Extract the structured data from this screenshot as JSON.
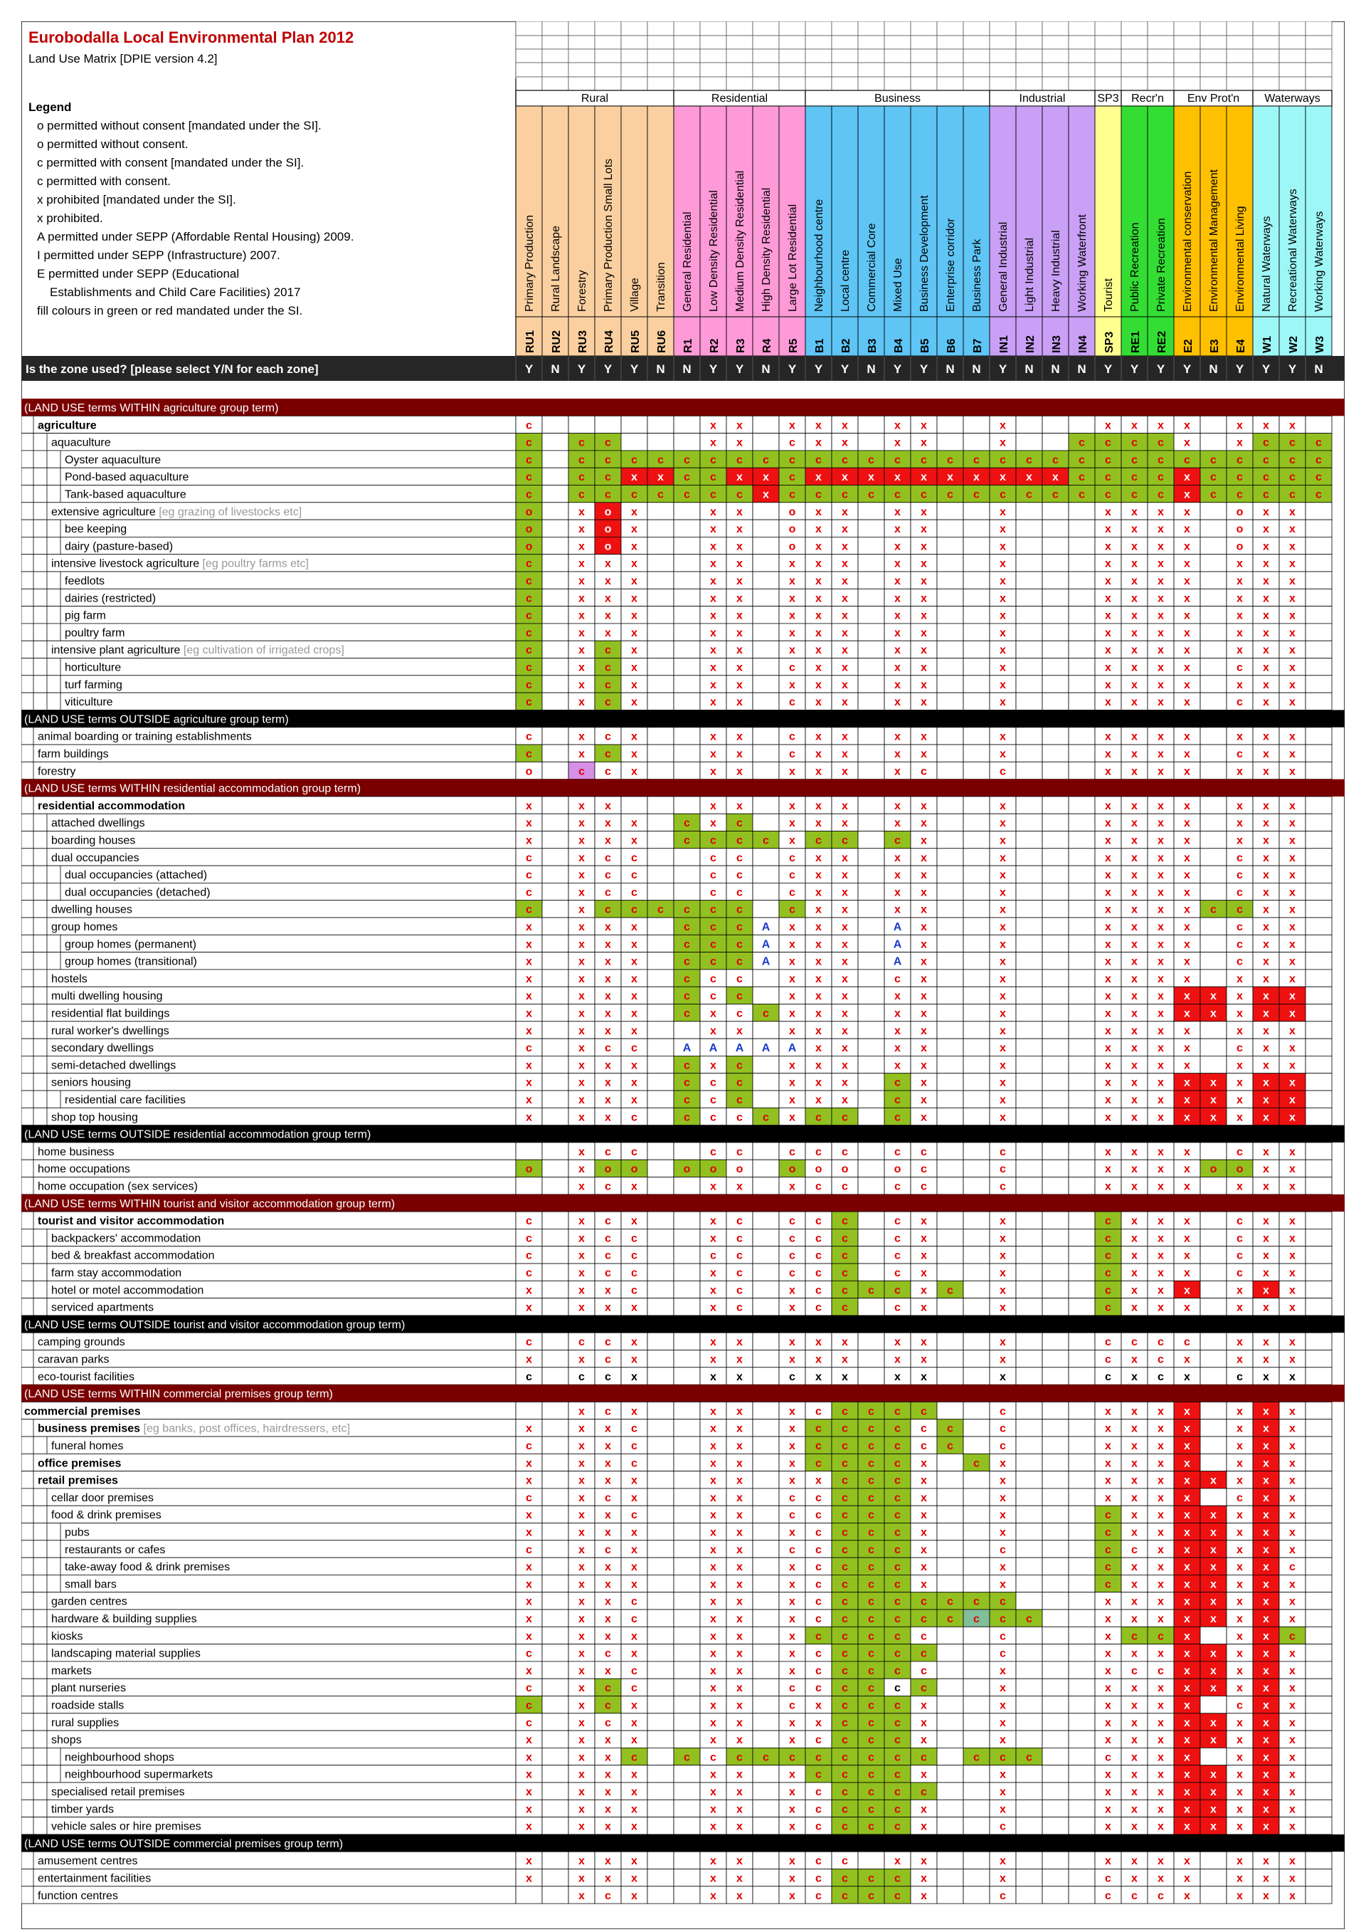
{
  "title": "Eurobodalla Local Environmental Plan 2012",
  "subtitle": "Land Use Matrix [DPIE version 4.2]",
  "legend": {
    "heading": "Legend",
    "items": [
      "o  permitted without consent [mandated under the SI].",
      "o  permitted without consent.",
      "c  permitted with consent [mandated under the SI].",
      "c  permitted with consent.",
      "x  prohibited [mandated under the SI].",
      "x  prohibited.",
      "A  permitted under SEPP (Affordable Rental Housing) 2009.",
      "I  permitted under SEPP (Infrastructure) 2007.",
      "E permitted under SEPP (Educational",
      "Establishments and Child Care Facilities) 2017",
      "fill colours in green or red mandated under the SI."
    ]
  },
  "colors": {
    "rural": "#fbd0a0",
    "residential": "#ff9ad8",
    "business": "#5fc5f5",
    "industrial": "#c9a0f5",
    "special": "#ffff90",
    "recreation": "#33dd33",
    "env": "#ffc000",
    "waterways": "#9ef7f7",
    "mandated_green": "#92c020",
    "mandated_red": "#ee1111",
    "section_within": "#7a0000",
    "section_outside": "#000000",
    "zone_used_bar": "#262626"
  },
  "groups": [
    {
      "label": "Rural",
      "span": 6
    },
    {
      "label": "Residential",
      "span": 5
    },
    {
      "label": "Business",
      "span": 7
    },
    {
      "label": "Industrial",
      "span": 4
    },
    {
      "label": "SP3",
      "span": 1
    },
    {
      "label": "Recr'n",
      "span": 2
    },
    {
      "label": "Env Prot'n",
      "span": 3
    },
    {
      "label": "Waterways",
      "span": 3
    }
  ],
  "zones": [
    {
      "code": "RU1",
      "name": "Primary Production",
      "group": "rural",
      "used": "Y"
    },
    {
      "code": "RU2",
      "name": "Rural Landscape",
      "group": "rural",
      "used": "N"
    },
    {
      "code": "RU3",
      "name": "Forestry",
      "group": "rural",
      "used": "Y"
    },
    {
      "code": "RU4",
      "name": "Primary Production Small Lots",
      "group": "rural",
      "used": "Y"
    },
    {
      "code": "RU5",
      "name": "Village",
      "group": "rural",
      "used": "Y"
    },
    {
      "code": "RU6",
      "name": "Transition",
      "group": "rural",
      "used": "N"
    },
    {
      "code": "R1",
      "name": "General Residential",
      "group": "residential",
      "used": "N"
    },
    {
      "code": "R2",
      "name": "Low Density Residential",
      "group": "residential",
      "used": "Y"
    },
    {
      "code": "R3",
      "name": "Medium Density Residential",
      "group": "residential",
      "used": "Y"
    },
    {
      "code": "R4",
      "name": "High Density Residential",
      "group": "residential",
      "used": "N"
    },
    {
      "code": "R5",
      "name": "Large Lot Residential",
      "group": "residential",
      "used": "Y"
    },
    {
      "code": "B1",
      "name": "Neighbourhood centre",
      "group": "business",
      "used": "Y"
    },
    {
      "code": "B2",
      "name": "Local centre",
      "group": "business",
      "used": "Y"
    },
    {
      "code": "B3",
      "name": "Commercial Core",
      "group": "business",
      "used": "N"
    },
    {
      "code": "B4",
      "name": "Mixed Use",
      "group": "business",
      "used": "Y"
    },
    {
      "code": "B5",
      "name": "Business Development",
      "group": "business",
      "used": "Y"
    },
    {
      "code": "B6",
      "name": "Enterprise corridor",
      "group": "business",
      "used": "N"
    },
    {
      "code": "B7",
      "name": "Business Park",
      "group": "business",
      "used": "N"
    },
    {
      "code": "IN1",
      "name": "General Industrial",
      "group": "industrial",
      "used": "Y"
    },
    {
      "code": "IN2",
      "name": "Light  Industrial",
      "group": "industrial",
      "used": "N"
    },
    {
      "code": "IN3",
      "name": "Heavy Industrial",
      "group": "industrial",
      "used": "N"
    },
    {
      "code": "IN4",
      "name": "Working Waterfront",
      "group": "industrial",
      "used": "N"
    },
    {
      "code": "SP3",
      "name": "Tourist",
      "group": "special",
      "used": "Y"
    },
    {
      "code": "RE1",
      "name": "Public Recreation",
      "group": "recreation",
      "used": "Y"
    },
    {
      "code": "RE2",
      "name": "Private Recreation",
      "group": "recreation",
      "used": "Y"
    },
    {
      "code": "E2",
      "name": "Environmental conservation",
      "group": "env",
      "used": "Y"
    },
    {
      "code": "E3",
      "name": "Environmental Management",
      "group": "env",
      "used": "N"
    },
    {
      "code": "E4",
      "name": "Environmental Living",
      "group": "env",
      "used": "Y"
    },
    {
      "code": "W1",
      "name": "Natural Waterways",
      "group": "waterways",
      "used": "Y"
    },
    {
      "code": "W2",
      "name": "Recreational Waterways",
      "group": "waterways",
      "used": "Y"
    },
    {
      "code": "W3",
      "name": "Working Waterways",
      "group": "waterways",
      "used": "N"
    }
  ],
  "zone_used_question": "Is the zone used? [please select Y/N for each zone]",
  "rows": [
    {
      "type": "section",
      "style": "within",
      "label": "(LAND USE terms WITHIN agriculture group term)"
    },
    {
      "label": "agriculture",
      "indent": 1,
      "bold": true,
      "values": "c . . . . . . x x . x x x . x x . . x . . . x x x x . x x x ."
    },
    {
      "label": "aquaculture",
      "indent": 2,
      "values": "cG . cG cG . . . x x . c x x . x x . . x . . cG cG cG cG x . x cG cG cG"
    },
    {
      "label": "Oyster aquaculture",
      "indent": 3,
      "values": "cG . cG cG cG cG cG cG cG cG cG cG cG cG cG cG cG cG cG cG cG cG cG cG cG cG cG cG cG cG cG"
    },
    {
      "label": "Pond-based aquaculture",
      "indent": 3,
      "values": "cG . cG cG xR xR cG cG xR xR cG xR xR xR xR xR xR xR xR xR xR cG cG cG cG xR cG cG cG cG cG"
    },
    {
      "label": "Tank-based aquaculture",
      "indent": 3,
      "values": "cG . cG cG cG cG cG cG cG xR cG cG cG cG cG cG cG cG cG cG cG cG cG cG cG xR cG cG cG cG cG"
    },
    {
      "label": "extensive agriculture",
      "note": "[eg grazing of livestocks etc]",
      "indent": 2,
      "values": "oG . x oR x . . x x . o x x . x x . . x . . . x x x x . o x x ."
    },
    {
      "label": "bee keeping",
      "indent": 3,
      "values": "oG . x oR x . . x x . o x x . x x . . x . . . x x x x . o x x ."
    },
    {
      "label": "dairy (pasture-based)",
      "indent": 3,
      "values": "oG . x oR x . . x x . o x x . x x . . x . . . x x x x . o x x ."
    },
    {
      "label": "intensive livestock agriculture",
      "note": "[eg poultry farms etc]",
      "indent": 2,
      "values": "cG . x x x . . x x . x x x . x x . . x . . . x x x x . x x x ."
    },
    {
      "label": "feedlots",
      "indent": 3,
      "values": "cG . x x x . . x x . x x x . x x . . x . . . x x x x . x x x ."
    },
    {
      "label": "dairies (restricted)",
      "indent": 3,
      "values": "cG . x x x . . x x . x x x . x x . . x . . . x x x x . x x x ."
    },
    {
      "label": "pig farm",
      "indent": 3,
      "values": "cG . x x x . . x x . x x x . x x . . x . . . x x x x . x x x ."
    },
    {
      "label": "poultry farm",
      "indent": 3,
      "values": "cG . x x x . . x x . x x x . x x . . x . . . x x x x . x x x ."
    },
    {
      "label": "intensive plant agriculture",
      "note": "[eg cultivation of irrigated crops]",
      "indent": 2,
      "values": "cG . x cG x . . x x . x x x . x x . . x . . . x x x x . x x x ."
    },
    {
      "label": "horticulture",
      "indent": 3,
      "values": "cG . x cG x . . x x . c x x . x x . . x . . . x x x x . c x x ."
    },
    {
      "label": "turf farming",
      "indent": 3,
      "values": "cG . x cG x . . x x . x x x . x x . . x . . . x x x x . x x x ."
    },
    {
      "label": "viticulture",
      "indent": 3,
      "values": "cG . x cG x . . x x . c x x . x x . . x . . . x x x x . c x x ."
    },
    {
      "type": "section",
      "style": "outside",
      "label": "(LAND USE terms OUTSIDE agriculture group term)"
    },
    {
      "label": "animal boarding or training establishments",
      "indent": 1,
      "values": "c . x c x . . x x . c x x . x x . . x . . . x x x x . x x x ."
    },
    {
      "label": "farm buildings",
      "indent": 1,
      "values": "cG . x cG x . . x x . c x x . x x . . x . . . x x x x . c x x ."
    },
    {
      "label": "forestry",
      "indent": 1,
      "values": "o . cP c x . . x x . x x x . x c . . c . . . x x x x . x x x ."
    },
    {
      "type": "section",
      "style": "within",
      "label": "(LAND USE terms WITHIN residential accommodation group term)"
    },
    {
      "label": "residential accommodation",
      "indent": 1,
      "bold": true,
      "values": "x . x x . . . x x . x x x . x x . . x . . . x x x x . x x x ."
    },
    {
      "label": "attached dwellings",
      "indent": 2,
      "values": "x . x x x . cG x cG . x x x . x x . . x . . . x x x x . x x x ."
    },
    {
      "label": "boarding houses",
      "indent": 2,
      "values": "x . x x x . cG cG cG cG x cG cG . cG x . . x . . . x x x x . x x x ."
    },
    {
      "label": "dual occupancies",
      "indent": 2,
      "values": "c . x c c . . c c . c x x . x x . . x . . . x x x x . c x x ."
    },
    {
      "label": "dual occupancies (attached)",
      "indent": 3,
      "values": "c . x c c . . c c . c x x . x x . . x . . . x x x x . c x x ."
    },
    {
      "label": "dual occupancies (detached)",
      "indent": 3,
      "values": "c . x c c . . c c . c x x . x x . . x . . . x x x x . c x x ."
    },
    {
      "label": "dwelling houses",
      "indent": 2,
      "values": "cG . x cG cG cG cG cG cG . cG x x . x x . . x . . . x x x x cG cG x x ."
    },
    {
      "label": "group homes",
      "indent": 2,
      "values": "x . x x x . cG cG cG A x x x . A x . . x . . . x x x x . c x x ."
    },
    {
      "label": "group homes (permanent)",
      "indent": 3,
      "values": "x . x x x . cG cG cG A x x x . A x . . x . . . x x x x . c x x ."
    },
    {
      "label": "group homes (transitional)",
      "indent": 3,
      "values": "x . x x x . cG cG cG A x x x . A x . . x . . . x x x x . c x x ."
    },
    {
      "label": "hostels",
      "indent": 2,
      "values": "x . x x x . cG c c . x x x . c x . . x . . . x x x x . x x x ."
    },
    {
      "label": "multi dwelling housing",
      "indent": 2,
      "values": "x . x x x . cG c cG . x x x . x x . . x . . . x x x xR xR x xR xR ."
    },
    {
      "label": "residential flat buildings",
      "indent": 2,
      "values": "x . x x x . cG x c cG x x x . x x . . x . . . x x x xR xR x xR xR ."
    },
    {
      "label": "rural worker's dwellings",
      "indent": 2,
      "values": "x . x x x . . x x . x x x . x x . . x . . . x x x x . x x x ."
    },
    {
      "label": "secondary dwellings",
      "indent": 2,
      "values": "c . x c c . A A A A A x x . x x . . x . . . x x x x . c x x ."
    },
    {
      "label": "semi-detached dwellings",
      "indent": 2,
      "values": "x . x x x . cG x cG . x x x . x x . . x . . . x x x x . x x x ."
    },
    {
      "label": "seniors housing",
      "indent": 2,
      "values": "x . x x x . cG c cG . x x x . cG x . . x . . . x x x xR xR x xR xR ."
    },
    {
      "label": "residential care facilities",
      "indent": 3,
      "values": "x . x x x . cG c cG . x x x . cG x . . x . . . x x x xR xR x xR xR ."
    },
    {
      "label": "shop top housing",
      "indent": 2,
      "values": "x . x x c . cG c c cG x cG cG . cG x . . x . . . x x x xR xR x xR xR ."
    },
    {
      "type": "section",
      "style": "outside",
      "label": "(LAND USE terms OUTSIDE residential accommodation group term)"
    },
    {
      "label": "home business",
      "indent": 1,
      "values": ". . x c c . . c c . c c c . c c . . c . . . x x x x . c x x ."
    },
    {
      "label": "home occupations",
      "indent": 1,
      "values": "oG . x oG oG . oG oG o . oG o o . o c . . c . . . x x x x oG oG x x ."
    },
    {
      "label": "home occupation (sex services)",
      "indent": 1,
      "values": ". . x c x . . x x . x c c . c c . . c . . . x x x x . x x x ."
    },
    {
      "type": "section",
      "style": "within",
      "label": "(LAND USE terms WITHIN tourist and visitor accommodation group term)"
    },
    {
      "label": "tourist and visitor accommodation",
      "indent": 1,
      "bold": true,
      "values": "c . x c x . . x c . c c cG . c x . . x . . . cG x x x . c x x ."
    },
    {
      "label": "backpackers' accommodation",
      "indent": 2,
      "values": "c . x c c . . x c . c c cG . c x . . x . . . cG x x x . c x x ."
    },
    {
      "label": "bed & breakfast accommodation",
      "indent": 2,
      "values": "c . x c c . . c c . c c cG . c x . . x . . . cG x x x . c x x ."
    },
    {
      "label": "farm stay accommodation",
      "indent": 2,
      "values": "c . x c c . . x c . c c cG . c x . . x . . . cG x x x . c x x ."
    },
    {
      "label": "hotel or motel accommodation",
      "indent": 2,
      "values": "x . x x c . . x c . x c cG cG cG x cG . x . . . cG x x xR . x xR x ."
    },
    {
      "label": "serviced apartments",
      "indent": 2,
      "values": "x . x x x . . x c . x c cG . c x . . x . . . cG x x x . x x x ."
    },
    {
      "type": "section",
      "style": "outside",
      "label": "(LAND USE terms OUTSIDE tourist and visitor accommodation group term)"
    },
    {
      "label": "camping grounds",
      "indent": 1,
      "values": "c . c c x . . x x . x x x . x x . . x . . . c c c c . x x x ."
    },
    {
      "label": "caravan parks",
      "indent": 1,
      "values": "x . x c x . . x x . x x x . x x . . x . . . c x c x . x x x ."
    },
    {
      "label": "eco-tourist facilities",
      "indent": 1,
      "values": "cK . cK cK xK . . xK xK . cK xK xK . xK xK . . xK . . . cK xK cK xK . cK xK xK ."
    },
    {
      "type": "section",
      "style": "within",
      "label": "(LAND USE terms WITHIN commercial premises group term)"
    },
    {
      "label": "commercial premises",
      "indent": 0,
      "bold": true,
      "values": ". . x c x . . x x . x c cG cG cG cG . . c . . . x x x xR . x xR x ."
    },
    {
      "label": "business premises",
      "note": "[eg banks, post offices, hairdressers, etc]",
      "indent": 1,
      "bold": true,
      "values": "x . x x c . . x x . x cG cG cG cG c cG . c . . . x x x xR . x xR x ."
    },
    {
      "label": "funeral homes",
      "indent": 2,
      "values": "c . x x c . . x x . x cG cG cG cG c cG . c . . . x x x xR . x xR x ."
    },
    {
      "label": "office premises",
      "indent": 1,
      "bold": true,
      "values": "x . x x c . . x x . x cG cG cG cG x . cG x . . . x x x xR . x xR x ."
    },
    {
      "label": "retail premises",
      "indent": 1,
      "bold": true,
      "values": "x . x x x . . x x . x x cG cG cG x . . x . . . x x x xR xR x xR x ."
    },
    {
      "label": "cellar door premises",
      "indent": 2,
      "values": "c . x c x . . x x . c c cG cG cG x . . x . . . x x x xR # c xR x ."
    },
    {
      "label": "food & drink premises",
      "indent": 2,
      "values": "x . x x c . . x x . c c cG cG cG x . . x . . . cG x x xR xR x xR x ."
    },
    {
      "label": "pubs",
      "indent": 3,
      "values": "x . x x x . . x x . x c cG cG cG x . . x . . . cG x x xR xR x xR x ."
    },
    {
      "label": "restaurants or cafes",
      "indent": 3,
      "values": "c . x c x . . x x . c c cG cG cG x . . c . . . cG c x xR xR x xR x ."
    },
    {
      "label": "take-away food & drink premises",
      "indent": 3,
      "values": "x . x x x . . x x . x c cG cG cG x . . x . . . cG x x xR xR x xR c ."
    },
    {
      "label": "small bars",
      "indent": 3,
      "values": "x . x x x . . x x . x c cG cG cG x . . x . . . cG x x xR xR x xR x ."
    },
    {
      "label": "garden centres",
      "indent": 2,
      "values": "x . x x c . . x x . x c cG cG cG cG cG cG cG . . . x x x xR xR x xR x ."
    },
    {
      "label": "hardware & building supplies",
      "indent": 2,
      "values": "x . x x c . . x x . x c cG cG cG cG cG cT cG cG . . x x x xR xR x xR x ."
    },
    {
      "label": "kiosks",
      "indent": 2,
      "values": "x . x x x . . x x . x cG cG cG cG c . . c . . . x cG cG xR # x xR cG ."
    },
    {
      "label": "landscaping material supplies",
      "indent": 2,
      "values": "c . x c x . . x x . x c cG cG cG cG . . c . . . x x x xR xR x xR x ."
    },
    {
      "label": "markets",
      "indent": 2,
      "values": "x . x x c . . x x . x c cG cG cG c . . x . . . x c c xR xR x xR x ."
    },
    {
      "label": "plant nurseries",
      "indent": 2,
      "values": "c . x cG c . . x x . c c cG cG cK cG . . x . . . x x x xR xR x xR x ."
    },
    {
      "label": "roadside stalls",
      "indent": 2,
      "values": "cG . x cG x . . x x . c x cG cG cG x . . x . . . x x x xR # c xR x ."
    },
    {
      "label": "rural supplies",
      "indent": 2,
      "values": "c . x c x . . x x . x x cG cG cG x . . x . . . x x x xR xR x xR x ."
    },
    {
      "label": "shops",
      "indent": 2,
      "values": "x . x x x . . x x . x c cG cG cG x . . x . . . x x x xR xR x xR x ."
    },
    {
      "label": "neighbourhood shops",
      "indent": 3,
      "values": "x . x x cG . cG c cG cG cG cG cG cG cG cG . cG cG cG . . c x x xR # x xR x ."
    },
    {
      "label": "neighbourhood supermarkets",
      "indent": 3,
      "values": "x . x x x . . x x . x cG cG cG cG x . . x . . . x x x xR xR x xR x ."
    },
    {
      "label": "specialised retail premises",
      "indent": 2,
      "values": "x . x x x . . x x . x c cG cG cG cG . . x . . . x x x xR xR x xR x ."
    },
    {
      "label": "timber yards",
      "indent": 2,
      "values": "x . x x x . . x x . x c cG cG cG x . . x . . . x x x xR xR x xR x ."
    },
    {
      "label": "vehicle sales or hire premises",
      "indent": 2,
      "values": "x . x x x . . x x . x c cG cG cG x . . c . . . x x x xR xR x xR x ."
    },
    {
      "type": "section",
      "style": "outside",
      "label": "(LAND USE terms OUTSIDE commercial premises group term)"
    },
    {
      "label": "amusement centres",
      "indent": 1,
      "values": "x . x x x . . x x . x c c . x x . . x . . . x x x x . x x x ."
    },
    {
      "label": "entertainment facilities",
      "indent": 1,
      "values": "x . x x x . . x x . x c cG cG cG x . . x . . . c x x x . x x x ."
    },
    {
      "label": "function centres",
      "indent": 1,
      "values": ". . x c x . . x x . x c cG cG cG x . . c . . . c c c x . x x x ."
    }
  ]
}
